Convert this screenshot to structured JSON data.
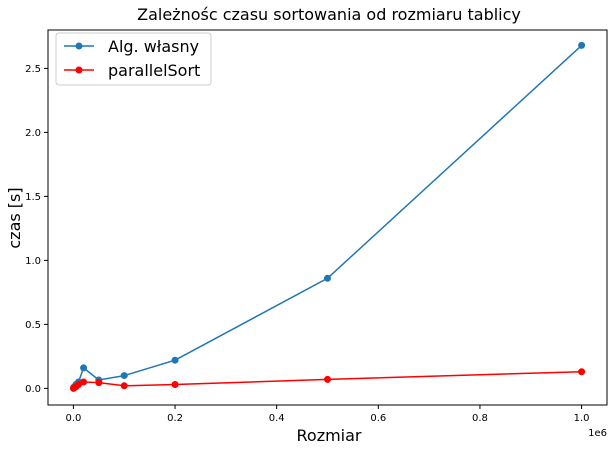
{
  "chart_data": {
    "type": "line",
    "title": "Zależnośc czasu sortowania od rozmiaru tablicy",
    "xlabel": "Rozmiar",
    "ylabel": "czas [s]",
    "x_offset_text": "1e6",
    "xlim": [
      -50000,
      1050000
    ],
    "ylim": [
      -0.13,
      2.8
    ],
    "xticks": [
      0,
      200000,
      400000,
      600000,
      800000,
      1000000
    ],
    "xtick_labels": [
      "0.0",
      "0.2",
      "0.4",
      "0.6",
      "0.8",
      "1.0"
    ],
    "yticks": [
      0,
      0.5,
      1.0,
      1.5,
      2.0,
      2.5
    ],
    "ytick_labels": [
      "0.0",
      "0.5",
      "1.0",
      "1.5",
      "2.0",
      "2.5"
    ],
    "grid": false,
    "legend_position": "top-left",
    "series": [
      {
        "name": "Alg. własny",
        "color": "#1f77b4",
        "marker": "circle",
        "x": [
          100,
          1000,
          5000,
          10000,
          20000,
          50000,
          100000,
          200000,
          500000,
          1000000
        ],
        "y": [
          0.003,
          0.01,
          0.03,
          0.05,
          0.16,
          0.065,
          0.1,
          0.22,
          0.86,
          2.68
        ]
      },
      {
        "name": "parallelSort",
        "color": "#ff0000",
        "marker": "circle",
        "x": [
          100,
          1000,
          5000,
          10000,
          20000,
          50000,
          100000,
          200000,
          500000,
          1000000
        ],
        "y": [
          0.0,
          0.005,
          0.012,
          0.03,
          0.05,
          0.045,
          0.02,
          0.03,
          0.07,
          0.13
        ]
      }
    ]
  }
}
